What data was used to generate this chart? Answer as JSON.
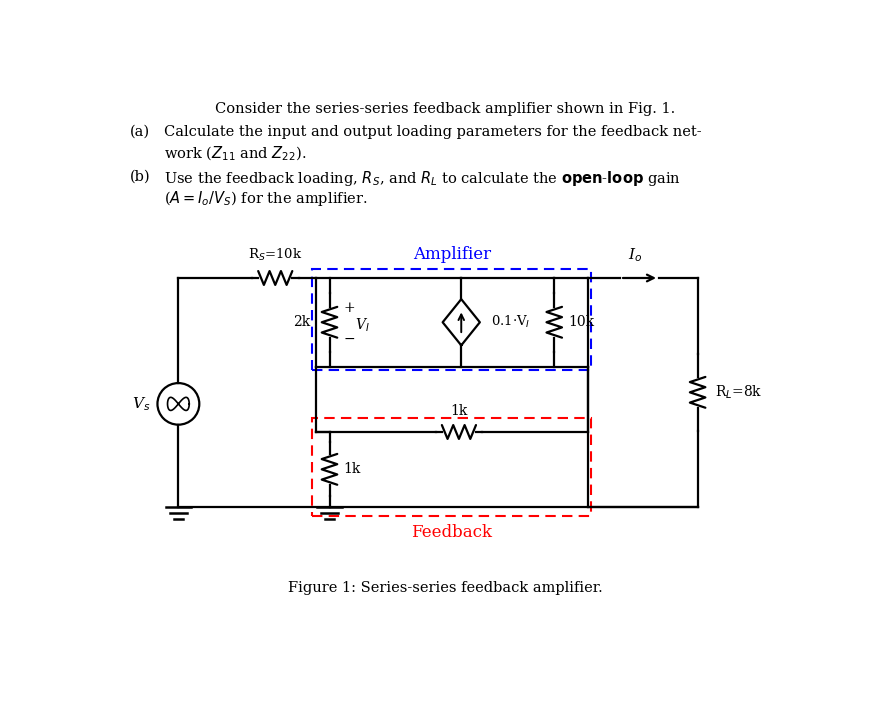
{
  "title_text": "Consider the series-series feedback amplifier shown in Fig. 1.",
  "fig_caption": "Figure 1: Series-series feedback amplifier.",
  "amplifier_label": "Amplifier",
  "feedback_label": "Feedback",
  "Rs_label": "R$_S$=10k",
  "Vs_label": "V$_s$",
  "Io_label": "I$_o$",
  "R2k_label": "2k",
  "V1_plus": "+",
  "V1_minus": "-",
  "V1_label": "V$_I$",
  "ccvs_label": "0.1·V$_I$",
  "R10k_label": "10k",
  "RL_label": "R$_L$=8k",
  "R1k_h_label": "1k",
  "R1k_v_label": "1k",
  "blue_color": "#0000FF",
  "red_color": "#FF0000",
  "black_color": "#000000",
  "bg_color": "#FFFFFF",
  "fig_w": 8.69,
  "fig_h": 7.06
}
